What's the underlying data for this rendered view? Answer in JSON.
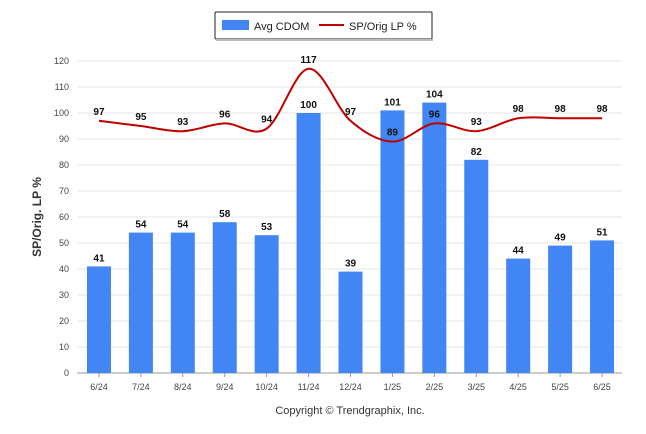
{
  "chart_data": {
    "type": "bar",
    "categories": [
      "6/24",
      "7/24",
      "8/24",
      "9/24",
      "10/24",
      "11/24",
      "12/24",
      "1/25",
      "2/25",
      "3/25",
      "4/25",
      "5/25",
      "6/25"
    ],
    "series": [
      {
        "name": "Avg CDOM",
        "type": "bar",
        "color": "#4285f4",
        "values": [
          41,
          54,
          54,
          58,
          53,
          100,
          39,
          101,
          104,
          82,
          44,
          49,
          51
        ]
      },
      {
        "name": "SP/Orig LP %",
        "type": "line",
        "color": "#c00000",
        "values": [
          97,
          95,
          93,
          96,
          94,
          117,
          97,
          89,
          96,
          93,
          98,
          98,
          98
        ]
      }
    ],
    "ylabel": "SP/Orig. LP %",
    "ylim": [
      0,
      120
    ],
    "yticks": [
      0,
      10,
      20,
      30,
      40,
      50,
      60,
      70,
      80,
      90,
      100,
      110,
      120
    ],
    "grid": true,
    "legend": "top-center",
    "credit": "Copyright © Trendgraphix, Inc."
  }
}
